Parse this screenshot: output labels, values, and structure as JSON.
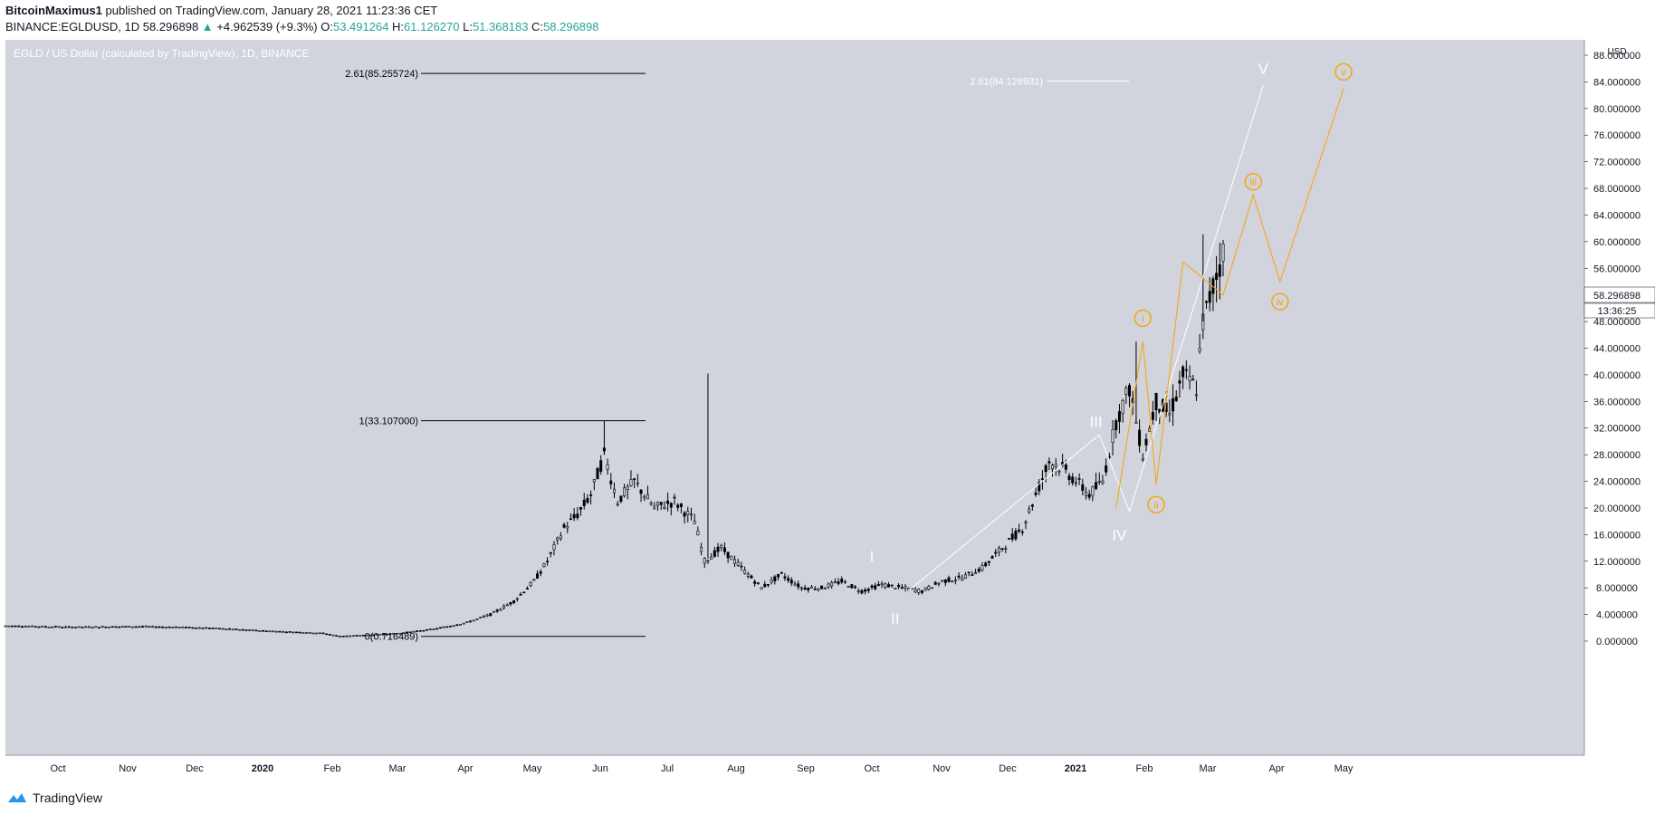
{
  "header": {
    "author": "BitcoinMaximus1",
    "published": "published on TradingView.com, January 28, 2021 11:23:36 CET",
    "symbol": "BINANCE:EGLDUSD, 1D",
    "last": "58.296898",
    "arrow": "▲",
    "change": "+4.962539 (+9.3%)",
    "o_label": "O:",
    "o_value": "53.491264",
    "h_label": "H:",
    "h_value": "61.126270",
    "l_label": "L:",
    "l_value": "51.368183",
    "c_label": "C:",
    "c_value": "58.296898"
  },
  "footer": {
    "brand": "TradingView",
    "logo_icon": "tradingview-logo-icon"
  },
  "colors": {
    "pane_bg": "#d1d4dc",
    "candles": "#000000",
    "wave_white": "#ffffff",
    "wave_orange": "#f7a400",
    "fib_black": "#000000"
  },
  "chart_data": {
    "type": "candlestick",
    "title": "EGLD / US Dollar (calculated by TradingView), 1D, BINANCE",
    "currency": "USD",
    "ylim": [
      0,
      88
    ],
    "y_ticks": [
      "0.000000",
      "4.000000",
      "8.000000",
      "12.000000",
      "16.000000",
      "20.000000",
      "24.000000",
      "28.000000",
      "32.000000",
      "36.000000",
      "40.000000",
      "44.000000",
      "48.000000",
      "52.000000",
      "56.000000",
      "60.000000",
      "64.000000",
      "68.000000",
      "72.000000",
      "76.000000",
      "80.000000",
      "84.000000",
      "88.000000"
    ],
    "x_ticks": [
      "Oct",
      "Nov",
      "Dec",
      "2020",
      "Feb",
      "Mar",
      "Apr",
      "May",
      "Jun",
      "Jul",
      "Aug",
      "Sep",
      "Oct",
      "Nov",
      "Dec",
      "2021",
      "Feb",
      "Mar",
      "Apr",
      "May"
    ],
    "last_price_label": "58.296898",
    "countdown_label": "13:36:25",
    "price_path": [
      [
        0,
        2.3
      ],
      [
        20,
        2.1
      ],
      [
        40,
        2.2
      ],
      [
        60,
        2.0
      ],
      [
        75,
        1.6
      ],
      [
        85,
        1.4
      ],
      [
        95,
        1.2
      ],
      [
        100,
        0.75
      ],
      [
        108,
        0.9
      ],
      [
        118,
        1.2
      ],
      [
        128,
        1.8
      ],
      [
        138,
        2.8
      ],
      [
        145,
        4.0
      ],
      [
        152,
        6.0
      ],
      [
        158,
        9.0
      ],
      [
        162,
        12.0
      ],
      [
        167,
        17.0
      ],
      [
        171,
        19.0
      ],
      [
        175,
        22.0
      ],
      [
        179,
        28.0
      ],
      [
        183,
        21.0
      ],
      [
        188,
        24.0
      ],
      [
        194,
        20.0
      ],
      [
        200,
        21.0
      ],
      [
        204,
        19.0
      ],
      [
        206,
        18.0
      ],
      [
        209,
        12.0
      ],
      [
        214,
        14.0
      ],
      [
        220,
        11.0
      ],
      [
        226,
        8.0
      ],
      [
        232,
        10.0
      ],
      [
        238,
        8.0
      ],
      [
        244,
        8.0
      ],
      [
        250,
        9.0
      ],
      [
        256,
        7.5
      ],
      [
        262,
        8.5
      ],
      [
        268,
        8.0
      ],
      [
        274,
        7.5
      ],
      [
        280,
        9.0
      ],
      [
        286,
        9.5
      ],
      [
        292,
        11.0
      ],
      [
        298,
        14.0
      ],
      [
        304,
        17.0
      ],
      [
        308,
        22.0
      ],
      [
        312,
        27.0
      ],
      [
        316,
        26.0
      ],
      [
        320,
        24.0
      ],
      [
        324,
        22.0
      ],
      [
        328,
        24.0
      ],
      [
        332,
        33.0
      ],
      [
        336,
        38.0
      ],
      [
        340,
        28.0
      ],
      [
        344,
        36.0
      ],
      [
        348,
        34.0
      ],
      [
        352,
        40.0
      ],
      [
        356,
        38.0
      ],
      [
        358,
        48.0
      ],
      [
        362,
        55.0
      ],
      [
        364,
        58.3
      ]
    ],
    "spikes": [
      {
        "day": 179,
        "high": 33.1
      },
      {
        "day": 210,
        "high": 40.2
      },
      {
        "day": 358,
        "high": 61.1
      },
      {
        "day": 338,
        "high": 45.0
      }
    ],
    "fib_levels": [
      {
        "label": "2.61(85.255724)",
        "value": 85.255724,
        "from_day": 100,
        "to_day": 165
      },
      {
        "label": "1(33.107000)",
        "value": 33.107,
        "from_day": 100,
        "to_day": 165
      },
      {
        "label": "0(0.716489)",
        "value": 0.716489,
        "from_day": 100,
        "to_day": 165
      }
    ],
    "fib_white": {
      "label": "2.61(84.126931)",
      "value": 84.126931,
      "from_day": 345,
      "to_day": 372
    },
    "wave_white": {
      "points": [
        [
          270,
          7.6
        ],
        [
          327,
          31.0
        ],
        [
          336,
          19.5
        ],
        [
          376,
          83.5
        ]
      ],
      "labels": [
        {
          "text": "I",
          "day": 259,
          "value": 12.8
        },
        {
          "text": "II",
          "day": 266,
          "value": 3.5
        },
        {
          "text": "III",
          "day": 326,
          "value": 33.0
        },
        {
          "text": "IV",
          "day": 333,
          "value": 16.0
        },
        {
          "text": "V",
          "day": 376,
          "value": 86.0
        }
      ]
    },
    "wave_orange": {
      "points": [
        [
          332,
          20.0
        ],
        [
          340,
          45.0
        ],
        [
          344,
          23.5
        ],
        [
          352,
          57.0
        ],
        [
          364,
          52.0
        ],
        [
          373,
          67.0
        ],
        [
          381,
          54.0
        ],
        [
          400,
          83.0
        ]
      ],
      "labels": [
        {
          "text": "i",
          "day": 340,
          "value": 48.5
        },
        {
          "text": "ii",
          "day": 344,
          "value": 20.5
        },
        {
          "text": "iii",
          "day": 373,
          "value": 69.0
        },
        {
          "text": "iv",
          "day": 381,
          "value": 51.0
        },
        {
          "text": "v",
          "day": 400,
          "value": 85.5
        }
      ]
    }
  }
}
